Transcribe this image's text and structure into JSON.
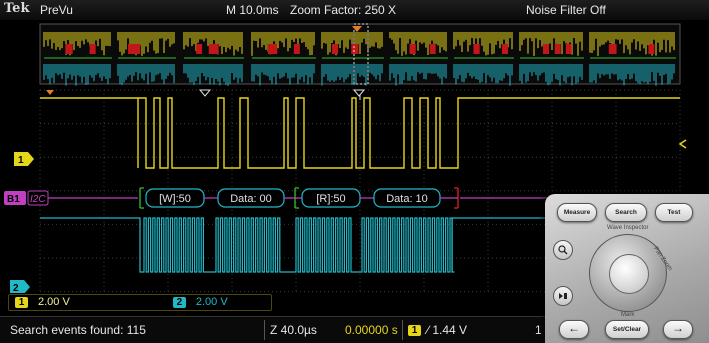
{
  "header": {
    "logo": "Tek",
    "mode": "PreVu",
    "timebase": "M 10.0ms",
    "zoom_factor": "Zoom Factor: 250 X",
    "noise_filter": "Noise Filter Off"
  },
  "channels": {
    "ch1": {
      "label": "1",
      "color": "#e6d61a",
      "scale": "2.00 V"
    },
    "ch2": {
      "label": "2",
      "color": "#21b8c8",
      "scale": "2.00 V"
    },
    "bus": {
      "label": "B1",
      "protocol": "I2C",
      "color": "#c040c0"
    }
  },
  "bus_packets": [
    {
      "text": "[W]:50"
    },
    {
      "text": "Data: 00"
    },
    {
      "text": "[R]:50"
    },
    {
      "text": "Data: 10"
    }
  ],
  "status": {
    "search_events": "Search events found: 115",
    "zoom_time": "Z 40.0µs",
    "trigger_position": "0.00000 s",
    "trigger_channel": "1",
    "trigger_level": "∕ 1.44 V",
    "cut_off": "1"
  },
  "front_panel": {
    "measure_label": "Measure",
    "search_label": "Search",
    "test_label": "Test",
    "wave_inspector_label": "Wave Inspector",
    "pan_zoom_label": "Pan  Zoom",
    "mark_label": "Mark",
    "set_clear_label": "Set/Clear",
    "magnify_icon": "magnifier-icon",
    "play_stop_icon": "play-stop-icon",
    "prev_arrow": "←",
    "next_arrow": "→"
  }
}
